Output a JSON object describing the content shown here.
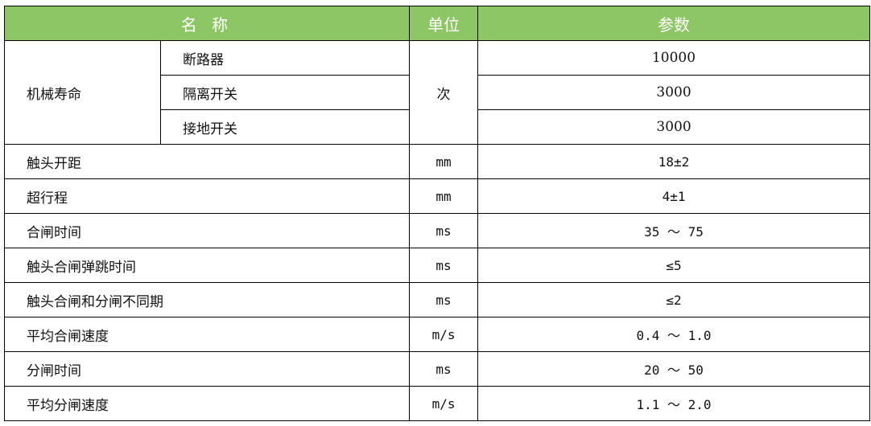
{
  "header": {
    "name": "名 称",
    "unit": "单位",
    "param": "参数"
  },
  "mechanical_life": {
    "label": "机械寿命",
    "unit": "次",
    "items": [
      {
        "name": "断路器",
        "value": "10000"
      },
      {
        "name": "隔离开关",
        "value": "3000"
      },
      {
        "name": "接地开关",
        "value": "3000"
      }
    ]
  },
  "rows": [
    {
      "name": "触头开距",
      "unit": "mm",
      "value": "18±2"
    },
    {
      "name": "超行程",
      "unit": "mm",
      "value": "4±1"
    },
    {
      "name": "合闸时间",
      "unit": "ms",
      "value": "35 ～ 75"
    },
    {
      "name": "触头合闸弹跳时间",
      "unit": "ms",
      "value": "≤5"
    },
    {
      "name": "触头合闸和分闸不同期",
      "unit": "ms",
      "value": "≤2"
    },
    {
      "name": "平均合闸速度",
      "unit": "m/s",
      "value": "0.4 ～ 1.0"
    },
    {
      "name": "分闸时间",
      "unit": "ms",
      "value": "20 ～ 50"
    },
    {
      "name": "平均分闸速度",
      "unit": "m/s",
      "value": "1.1 ～ 2.0"
    }
  ],
  "colors": {
    "header_bg": "#8dc665"
  }
}
